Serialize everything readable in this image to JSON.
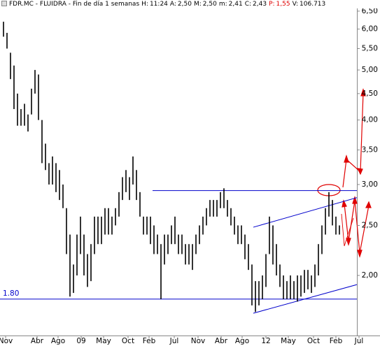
{
  "chart_data": {
    "type": "range-bar",
    "title": "FDR.MC - FLUIDRA - Fin de día 1 semanas",
    "stats": [
      {
        "label": "H:",
        "value": "11:24",
        "color": "#000000"
      },
      {
        "label": "A:",
        "value": "2,50",
        "color": "#000000"
      },
      {
        "label": "M:",
        "value": "2,50",
        "color": "#000000"
      },
      {
        "label": "m:",
        "value": "2,41",
        "color": "#000000"
      },
      {
        "label": "C:",
        "value": "2,43",
        "color": "#000000"
      },
      {
        "label": "P:",
        "value": "1,55",
        "color": "#e00000"
      },
      {
        "label": "V:",
        "value": "106.713",
        "color": "#000000"
      }
    ],
    "color": "#000000",
    "ylog": true,
    "ylim": [
      1.53,
      6.58
    ],
    "yticks": [
      {
        "value": 6.5,
        "label": "6,50"
      },
      {
        "value": 6,
        "label": "6,00"
      },
      {
        "value": 5.5,
        "label": "5,50"
      },
      {
        "value": 5,
        "label": "5,00"
      },
      {
        "value": 4.5,
        "label": "4,50"
      },
      {
        "value": 4,
        "label": "4,00"
      },
      {
        "value": 3.5,
        "label": "3,50"
      },
      {
        "value": 3,
        "label": "3,00"
      },
      {
        "value": 2.5,
        "label": "2,50"
      },
      {
        "value": 2,
        "label": "2,00"
      }
    ],
    "xlim": [
      0,
      108.6
    ],
    "xticks": [
      {
        "value": 1.6,
        "label": "Nov"
      },
      {
        "value": 10.6,
        "label": "Abr"
      },
      {
        "value": 16.6,
        "label": "Ago"
      },
      {
        "value": 23.2,
        "label": "09"
      },
      {
        "value": 29.6,
        "label": "May"
      },
      {
        "value": 36.6,
        "label": "Oct"
      },
      {
        "value": 42.6,
        "label": "Feb"
      },
      {
        "value": 49.8,
        "label": "Jul"
      },
      {
        "value": 56.6,
        "label": "Nov"
      },
      {
        "value": 63.2,
        "label": "Abr"
      },
      {
        "value": 69.2,
        "label": "Ago"
      },
      {
        "value": 76,
        "label": "12"
      },
      {
        "value": 82.4,
        "label": "May"
      },
      {
        "value": 89.6,
        "label": "Oct"
      },
      {
        "value": 96,
        "label": "Feb"
      },
      {
        "value": 102.6,
        "label": "Jul"
      }
    ],
    "x": [
      1,
      2,
      3,
      4,
      5,
      6,
      7,
      8,
      9,
      10,
      11,
      12,
      13,
      14,
      15,
      16,
      17,
      18,
      19,
      20,
      21,
      22,
      23,
      24,
      25,
      26,
      27,
      28,
      29,
      30,
      31,
      32,
      33,
      34,
      35,
      36,
      37,
      38,
      39,
      40,
      41,
      42,
      43,
      44,
      45,
      46,
      47,
      48,
      49,
      50,
      51,
      52,
      53,
      54,
      55,
      56,
      57,
      58,
      59,
      60,
      61,
      62,
      63,
      64,
      65,
      66,
      67,
      68,
      69,
      70,
      71,
      72,
      73,
      74,
      75,
      76,
      77,
      78,
      79,
      80,
      81,
      82,
      83,
      84,
      85,
      86,
      87,
      88,
      89,
      90,
      91,
      92,
      93,
      94,
      95,
      96,
      97
    ],
    "high": [
      6.2,
      5.9,
      5.4,
      5.1,
      4.5,
      4.2,
      4.3,
      4.1,
      4.6,
      5.0,
      4.9,
      4.0,
      3.6,
      3.3,
      3.4,
      3.3,
      3.2,
      3.0,
      2.7,
      2.4,
      2.1,
      2.4,
      2.6,
      2.4,
      2.2,
      2.3,
      2.6,
      2.6,
      2.6,
      2.7,
      2.7,
      2.6,
      2.7,
      2.9,
      3.1,
      3.2,
      3.1,
      3.4,
      3.2,
      2.9,
      2.6,
      2.6,
      2.6,
      2.5,
      2.4,
      2.3,
      2.4,
      2.4,
      2.5,
      2.6,
      2.4,
      2.4,
      2.3,
      2.3,
      2.3,
      2.4,
      2.5,
      2.6,
      2.7,
      2.8,
      2.8,
      2.8,
      2.9,
      2.95,
      2.8,
      2.7,
      2.6,
      2.5,
      2.5,
      2.4,
      2.3,
      2.1,
      1.95,
      1.95,
      2.0,
      2.2,
      2.6,
      2.5,
      2.3,
      2.1,
      2.0,
      1.95,
      2.0,
      1.95,
      2.0,
      2.0,
      2.05,
      2.05,
      2.0,
      2.1,
      2.3,
      2.5,
      2.7,
      2.9,
      2.8,
      2.6,
      2.5
    ],
    "low": [
      5.8,
      5.5,
      4.8,
      4.2,
      3.9,
      3.9,
      3.9,
      3.8,
      4.1,
      4.5,
      4.0,
      3.3,
      3.2,
      3.0,
      3.0,
      2.9,
      2.8,
      2.7,
      2.2,
      1.82,
      1.85,
      2.0,
      2.2,
      2.0,
      1.9,
      1.95,
      2.2,
      2.3,
      2.3,
      2.4,
      2.4,
      2.4,
      2.5,
      2.6,
      2.8,
      2.9,
      2.8,
      3.0,
      2.8,
      2.6,
      2.4,
      2.4,
      2.3,
      2.2,
      2.2,
      1.8,
      2.1,
      2.2,
      2.3,
      2.3,
      2.2,
      2.2,
      2.1,
      2.1,
      2.05,
      2.2,
      2.3,
      2.4,
      2.5,
      2.6,
      2.6,
      2.6,
      2.7,
      2.7,
      2.6,
      2.5,
      2.4,
      2.3,
      2.3,
      2.15,
      2.05,
      1.75,
      1.7,
      1.75,
      1.8,
      1.9,
      2.2,
      2.1,
      2.0,
      1.9,
      1.8,
      1.8,
      1.8,
      1.8,
      1.78,
      1.82,
      1.85,
      1.88,
      1.85,
      1.9,
      2.0,
      2.2,
      2.4,
      2.6,
      2.5,
      2.4,
      2.4
    ],
    "levels": [
      {
        "value": 2.92,
        "from": 43.6,
        "to": 102,
        "color": "#0000cc"
      },
      {
        "value": 1.8,
        "label": "1.80",
        "from": 0,
        "to": 102,
        "color": "#0000cc"
      }
    ],
    "trendlines": [
      {
        "x": [
          72.4,
          102
        ],
        "y": [
          2.48,
          2.83
        ],
        "color": "#0000cc"
      },
      {
        "x": [
          72.4,
          102
        ],
        "y": [
          1.69,
          1.92
        ],
        "color": "#0000cc"
      }
    ]
  }
}
